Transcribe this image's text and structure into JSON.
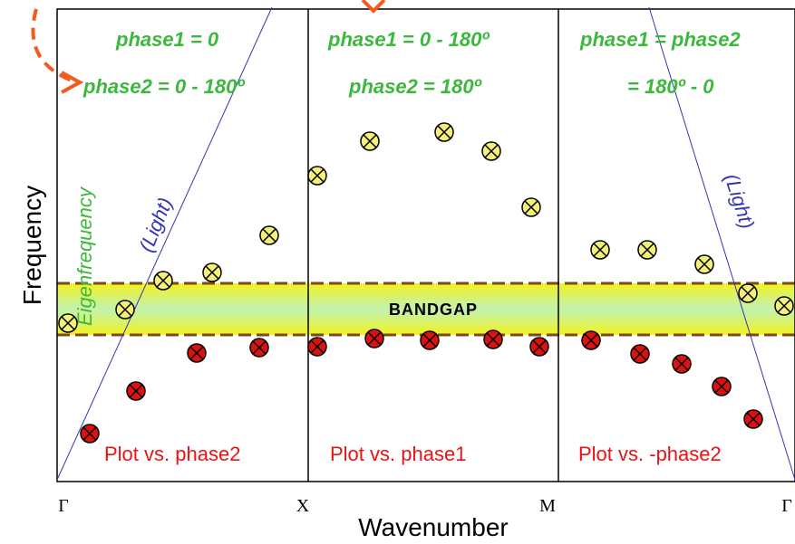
{
  "colors": {
    "phase_text": "#3cb83c",
    "plot_text": "#ee1111",
    "light_line": "#3434b4",
    "arrow": "#f25a1e",
    "yellow_fill": "#f4f07a",
    "red_fill": "#dd1111",
    "band_outer": "#f2f21e",
    "band_inner": "#c6f2a6",
    "band_dash": "#7a4a1a"
  },
  "panels": [
    {
      "phase_line1": "phase1 = 0",
      "phase_line2": "phase2 = 0 - 180º",
      "plot_label": "Plot vs. phase2"
    },
    {
      "phase_line1": "phase1 = 0 - 180º",
      "phase_line2": "phase2 = 180º",
      "plot_label": "Plot vs. phase1"
    },
    {
      "phase_line1": "phase1 = phase2",
      "phase_line2": "= 180º - 0",
      "plot_label": "Plot vs. -phase2"
    }
  ],
  "bandgap_label": "BANDGAP",
  "light_label": "(Light)",
  "eigen_label": "Eigenfrequency",
  "axis": {
    "ylabel": "Frequency",
    "xlabel": "Wavenumber",
    "ticks": [
      "Γ",
      "X",
      "M",
      "Γ"
    ]
  },
  "icons": {
    "marker": "circle-cross-marker",
    "arrow": "dashed-curved-arrow"
  },
  "points": {
    "yellow": [
      [
        75,
        357
      ],
      [
        138,
        342
      ],
      [
        180,
        310
      ],
      [
        234,
        301
      ],
      [
        297,
        260
      ],
      [
        350,
        194
      ],
      [
        408,
        156
      ],
      [
        490,
        146
      ],
      [
        542,
        167
      ],
      [
        586,
        229
      ],
      [
        662,
        276
      ],
      [
        714,
        276
      ],
      [
        777,
        292
      ],
      [
        825,
        324
      ],
      [
        865,
        338
      ]
    ],
    "red": [
      [
        99,
        479
      ],
      [
        150,
        432
      ],
      [
        217,
        390
      ],
      [
        286,
        384
      ],
      [
        350,
        383
      ],
      [
        413,
        374
      ],
      [
        474,
        376
      ],
      [
        544,
        375
      ],
      [
        595,
        383
      ],
      [
        652,
        376
      ],
      [
        706,
        391
      ],
      [
        752,
        402
      ],
      [
        796,
        427
      ],
      [
        831,
        463
      ]
    ]
  }
}
